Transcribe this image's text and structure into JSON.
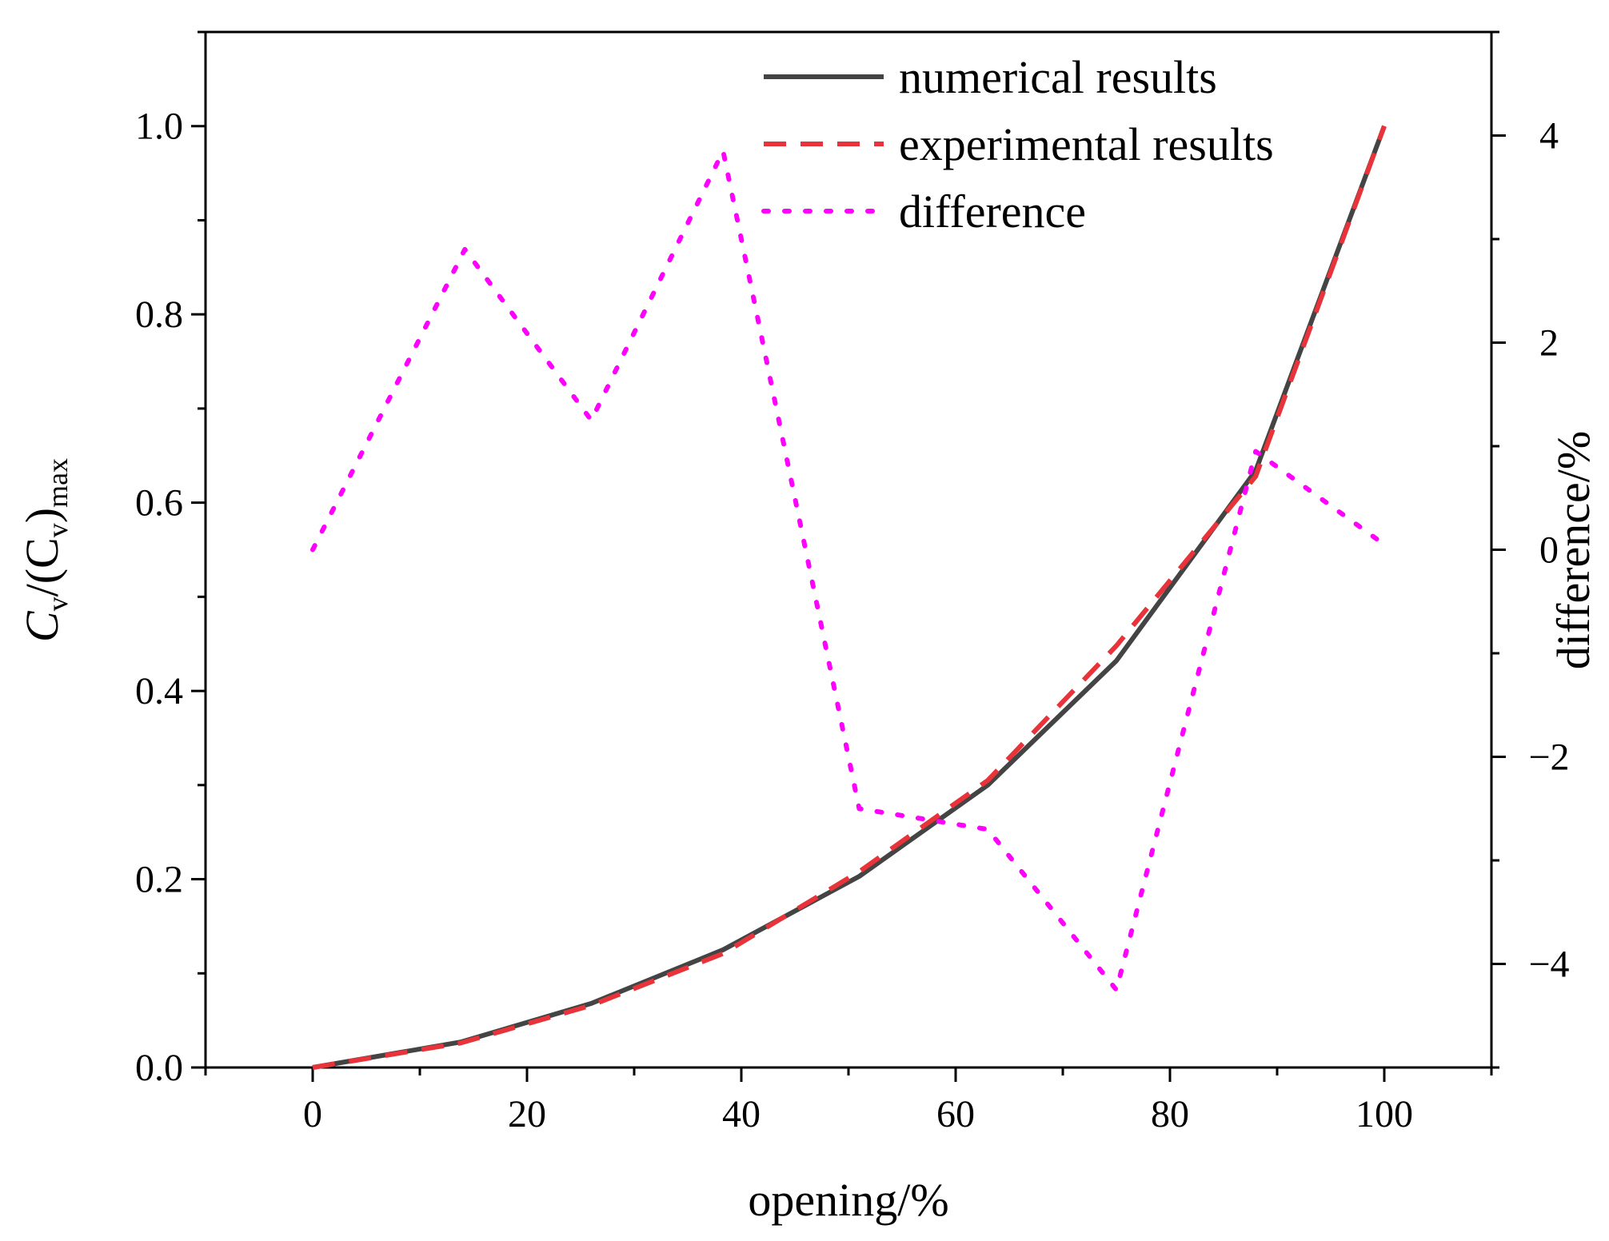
{
  "chart_data": {
    "type": "line",
    "xlabel": "opening/%",
    "ylabel": {
      "main": "C",
      "sub1": "v",
      "mid": "/(C",
      "sub2": "v",
      "close": ")",
      "sub3": "max"
    },
    "y2label": "difference/%",
    "xlim": [
      -10,
      110
    ],
    "ylim": [
      0,
      1.1
    ],
    "y2lim": [
      -5,
      5
    ],
    "xticks": [
      0,
      20,
      40,
      60,
      80,
      100
    ],
    "xtick_labels": [
      "0",
      "20",
      "40",
      "60",
      "80",
      "100"
    ],
    "yticks": [
      0,
      0.2,
      0.4,
      0.6,
      0.8,
      1.0
    ],
    "ytick_labels": [
      "0.0",
      "0.2",
      "0.4",
      "0.6",
      "0.8",
      "1.0"
    ],
    "y2ticks": [
      -4,
      -2,
      0,
      2,
      4
    ],
    "y2tick_labels": [
      "−4",
      "−2",
      "0",
      "2",
      "4"
    ],
    "series": [
      {
        "name": "numerical results",
        "axis": "left",
        "color": "#444444",
        "style": "solid",
        "x": [
          0,
          13.8,
          26,
          38.3,
          51,
          63,
          75,
          88,
          100
        ],
        "y": [
          0,
          0.027,
          0.068,
          0.125,
          0.203,
          0.3,
          0.432,
          0.634,
          1.0
        ]
      },
      {
        "name": "experimental results",
        "axis": "left",
        "color": "#e8333a",
        "style": "dashed",
        "x": [
          0,
          13.8,
          26,
          38.3,
          51,
          63,
          75,
          88,
          100
        ],
        "y": [
          0,
          0.026,
          0.066,
          0.121,
          0.208,
          0.305,
          0.448,
          0.628,
          1.0
        ]
      },
      {
        "name": "difference",
        "axis": "right",
        "color": "#ff00ff",
        "style": "dotted",
        "x": [
          0,
          14.2,
          26,
          38.3,
          51,
          63,
          75,
          88,
          100
        ],
        "y": [
          0,
          2.9,
          1.25,
          3.85,
          -2.5,
          -2.7,
          -4.25,
          0.95,
          0.05
        ]
      }
    ],
    "legend": {
      "position": "top-center",
      "entries": [
        "numerical results",
        "experimental results",
        "difference"
      ]
    }
  }
}
